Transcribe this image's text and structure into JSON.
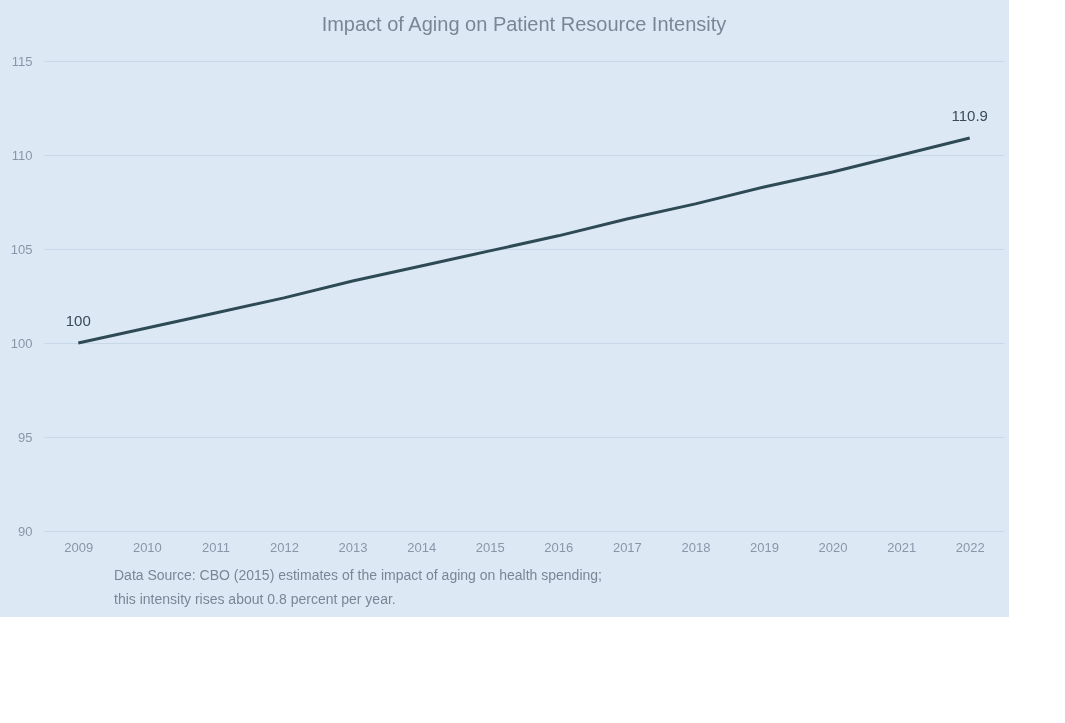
{
  "chart_data": {
    "type": "line",
    "title": "Impact of Aging on Patient Resource Intensity",
    "categories": [
      "2009",
      "2010",
      "2011",
      "2012",
      "2013",
      "2014",
      "2015",
      "2016",
      "2017",
      "2018",
      "2019",
      "2020",
      "2021",
      "2022"
    ],
    "series": [
      {
        "color": "#2e4a55",
        "values": [
          100,
          100.8,
          101.6,
          102.4,
          103.3,
          104.1,
          104.9,
          105.7,
          106.6,
          107.4,
          108.3,
          109.1,
          110.0,
          110.9
        ],
        "value_labels": [
          "100",
          null,
          null,
          null,
          null,
          null,
          null,
          null,
          null,
          null,
          null,
          null,
          null,
          "110.9"
        ]
      }
    ],
    "ylim": [
      90,
      115
    ],
    "yticks": [
      90,
      95,
      100,
      105,
      110,
      115
    ],
    "grid": "y",
    "marker": "none",
    "line_style": "solid",
    "annotations": [
      "Data Source: CBO (2015) estimates of the impact of aging on health spending;",
      "this intensity rises about 0.8 percent per year."
    ]
  }
}
